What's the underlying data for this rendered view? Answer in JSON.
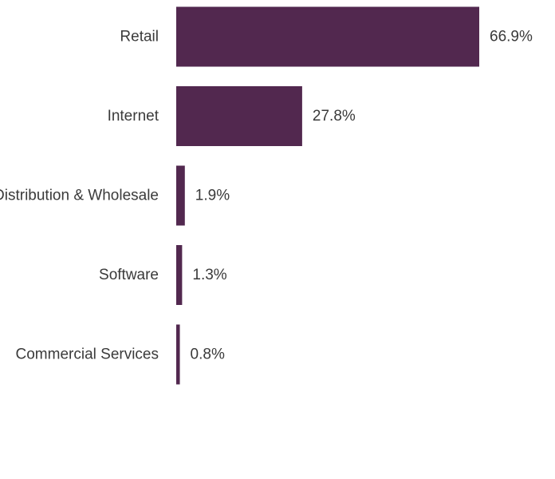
{
  "chart_data": {
    "type": "bar",
    "orientation": "horizontal",
    "categories": [
      "Retail",
      "Internet",
      "Distribution & Wholesale",
      "Software",
      "Commercial Services"
    ],
    "values": [
      66.9,
      27.8,
      1.9,
      1.3,
      0.8
    ],
    "value_labels": [
      "66.9%",
      "27.8%",
      "1.9%",
      "1.3%",
      "0.8%"
    ],
    "unit": "%",
    "xlim": [
      0,
      70
    ],
    "grid": false,
    "bar_color": "#52284f",
    "text_color": "#3a3a3a"
  }
}
